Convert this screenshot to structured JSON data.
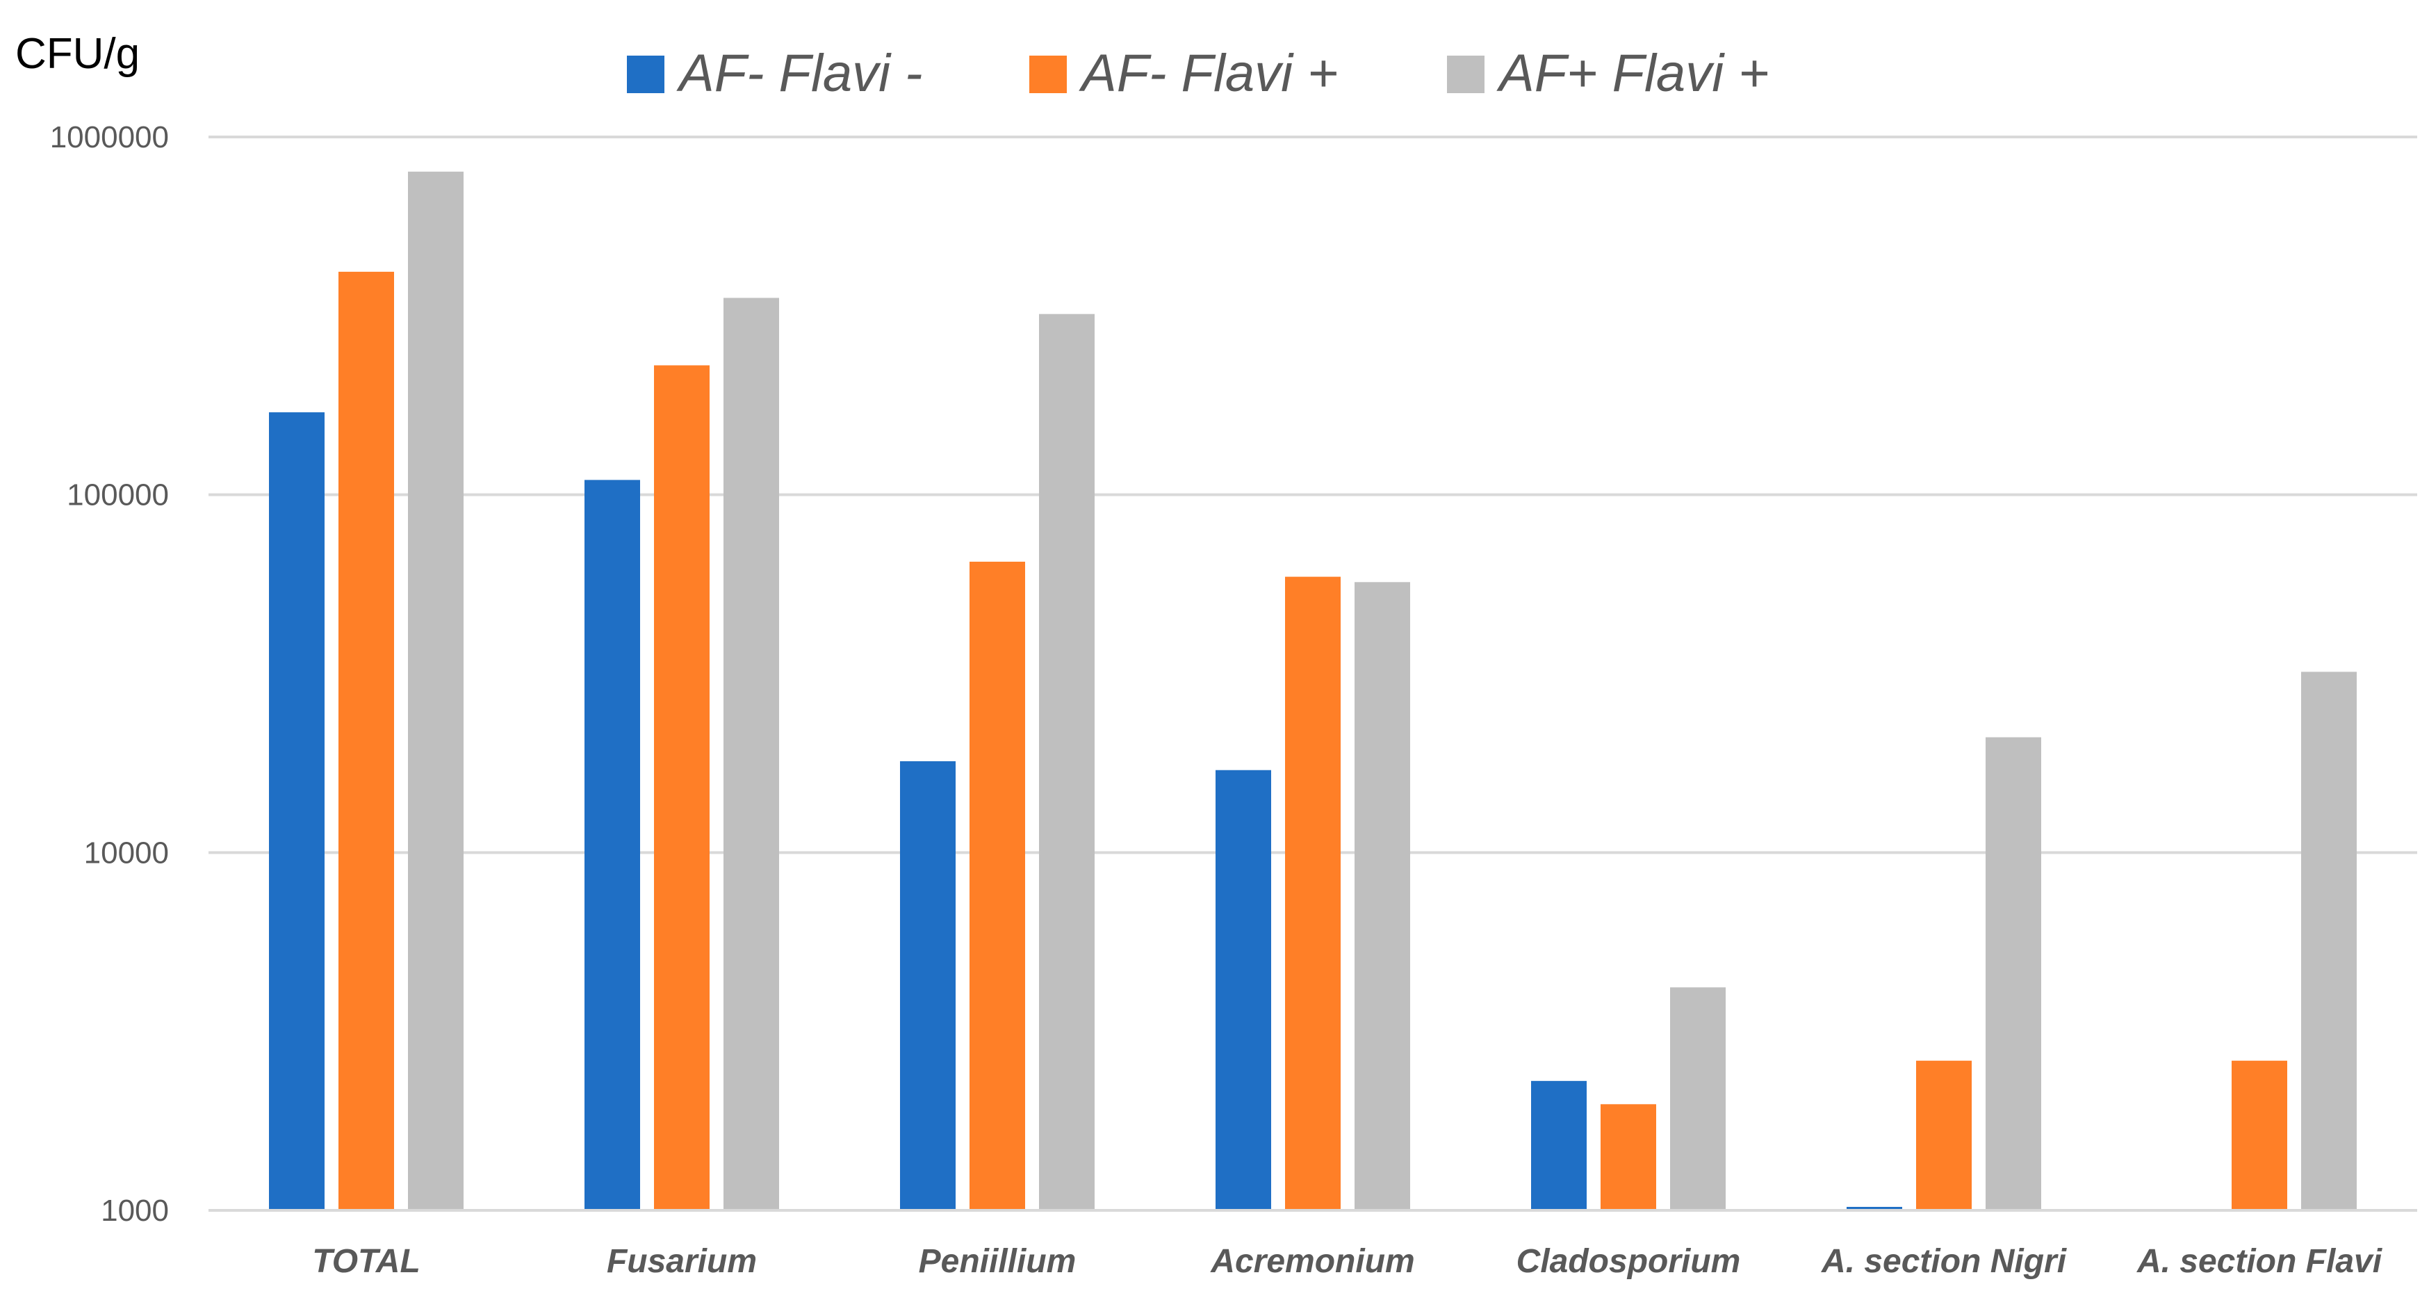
{
  "chart_data": {
    "type": "bar",
    "ylabel": "CFU/g",
    "yscale": "log",
    "ylim": [
      1000,
      1000000
    ],
    "yticks": [
      1000,
      10000,
      100000,
      1000000
    ],
    "ytick_labels": [
      "1000",
      "10000",
      "100000",
      "1000000"
    ],
    "grid": true,
    "legend_position": "top",
    "categories": [
      "TOTAL",
      "Fusarium",
      "Peniillium",
      "Acremonium",
      "Cladosporium",
      "A. section Nigri",
      "A. section Flavi"
    ],
    "series": [
      {
        "name": "AF- Flavi -",
        "color": "#1F6FC5",
        "values": [
          170000,
          110000,
          18000,
          17000,
          2300,
          980,
          null
        ]
      },
      {
        "name": "AF- Flavi +",
        "color": "#FF7F27",
        "values": [
          420000,
          230000,
          65000,
          59000,
          1980,
          2620,
          2620
        ]
      },
      {
        "name": "AF+ Flavi +",
        "color": "#BFBFBF",
        "values": [
          800000,
          355000,
          320000,
          57000,
          4200,
          21000,
          32000
        ]
      }
    ]
  }
}
